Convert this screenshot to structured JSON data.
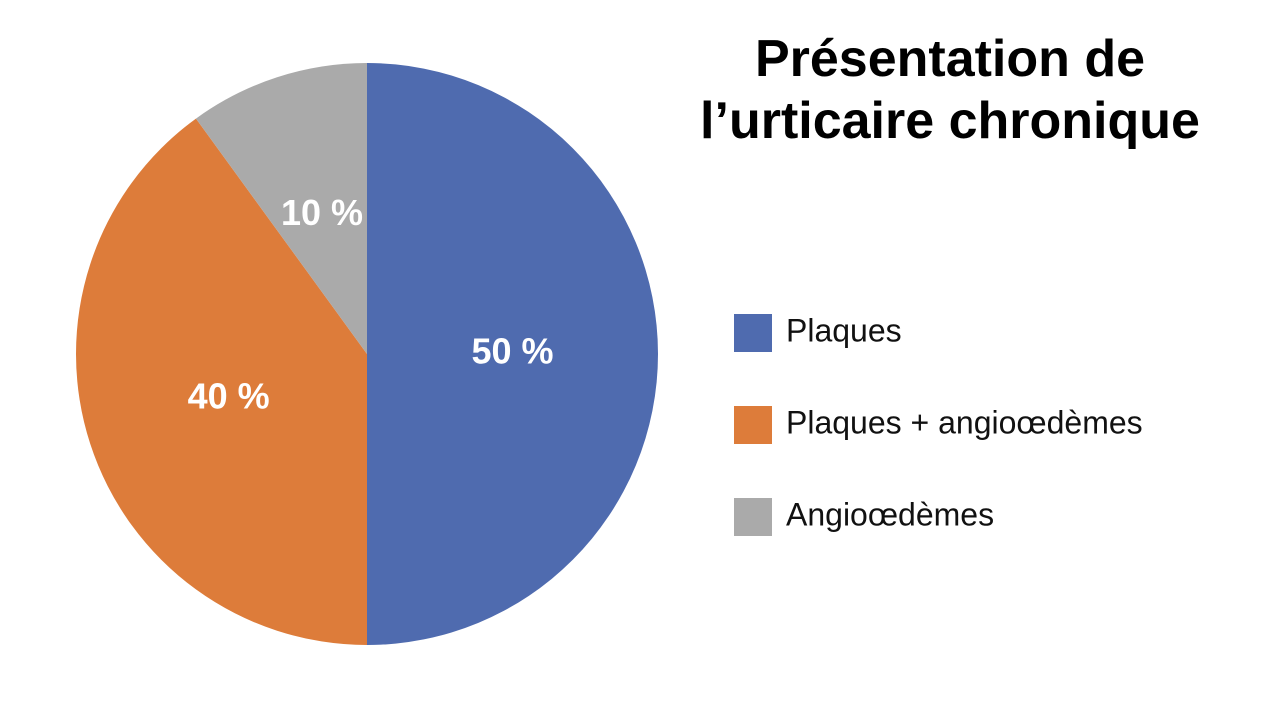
{
  "chart_data": {
    "type": "pie",
    "title": "Présentation de l’urticaire chronique",
    "categories": [
      "Plaques",
      "Plaques + angioœdèmes",
      "Angioœdèmes"
    ],
    "values": [
      50,
      40,
      10
    ],
    "value_labels": [
      "50 %",
      "40 %",
      "10 %"
    ],
    "colors": [
      "#4f6baf",
      "#dd7c3a",
      "#aaaaaa"
    ],
    "legend": "right"
  }
}
